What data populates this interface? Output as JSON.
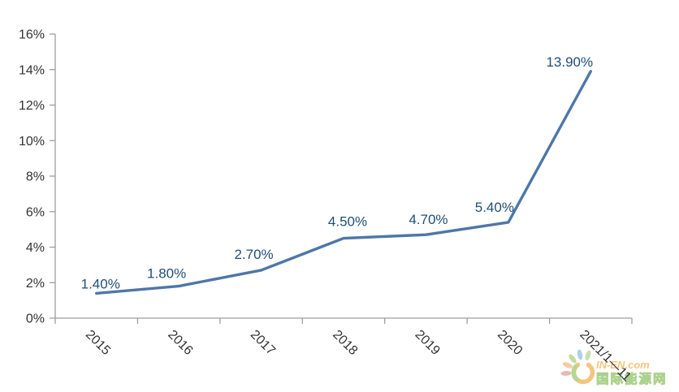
{
  "chart_data": {
    "type": "line",
    "categories": [
      "2015",
      "2016",
      "2017",
      "2018",
      "2019",
      "2020",
      "2021/1—11"
    ],
    "values": [
      1.4,
      1.8,
      2.7,
      4.5,
      4.7,
      5.4,
      13.9
    ],
    "data_labels": [
      "1.40%",
      "1.80%",
      "2.70%",
      "4.50%",
      "4.70%",
      "5.40%",
      "13.90%"
    ],
    "y_ticks": [
      "0%",
      "2%",
      "4%",
      "6%",
      "8%",
      "10%",
      "12%",
      "14%",
      "16%"
    ],
    "y_tick_values": [
      0,
      2,
      4,
      6,
      8,
      10,
      12,
      14,
      16
    ],
    "ylim": [
      0,
      16
    ],
    "title": "",
    "xlabel": "",
    "ylabel": "",
    "grid": false,
    "legend": false,
    "line_color": "#4d77a8",
    "label_color": "#1f4e79",
    "axis_color": "#9d9d9d",
    "tick_label_color": "#333333"
  },
  "watermark": {
    "brand": "IN-EN.com",
    "brand_cn": "国际能源网",
    "orange": "#f0a22e",
    "green": "#7ab648"
  }
}
